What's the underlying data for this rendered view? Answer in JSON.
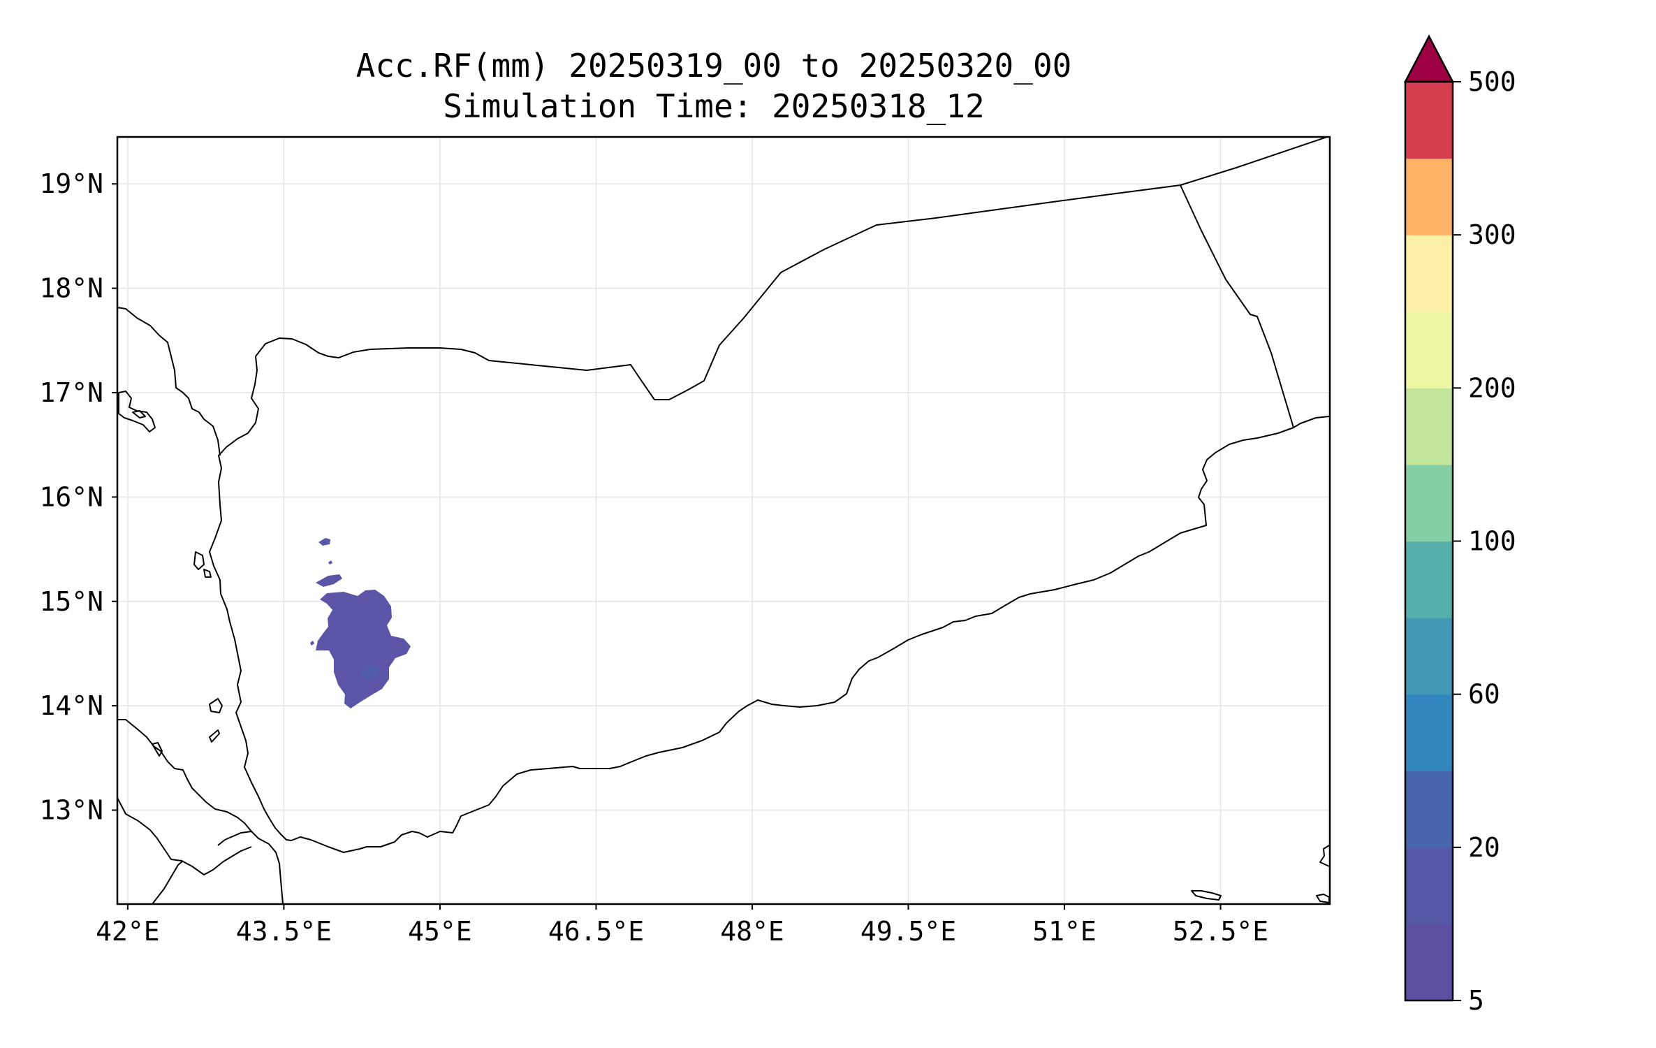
{
  "title_line1": "Acc.RF(mm) 20250319_00 to 20250320_00",
  "title_line2": "Simulation Time: 20250318_12",
  "map": {
    "lon_range": [
      41.9,
      53.55
    ],
    "lat_range": [
      12.1,
      19.45
    ],
    "x_ticks": [
      {
        "value": 42.0,
        "label": "42°E"
      },
      {
        "value": 43.5,
        "label": "43.5°E"
      },
      {
        "value": 45.0,
        "label": "45°E"
      },
      {
        "value": 46.5,
        "label": "46.5°E"
      },
      {
        "value": 48.0,
        "label": "48°E"
      },
      {
        "value": 49.5,
        "label": "49.5°E"
      },
      {
        "value": 51.0,
        "label": "51°E"
      },
      {
        "value": 52.5,
        "label": "52.5°E"
      }
    ],
    "y_ticks": [
      {
        "value": 13.0,
        "label": "13°N"
      },
      {
        "value": 14.0,
        "label": "14°N"
      },
      {
        "value": 15.0,
        "label": "15°N"
      },
      {
        "value": 16.0,
        "label": "16°N"
      },
      {
        "value": 17.0,
        "label": "17°N"
      },
      {
        "value": 18.0,
        "label": "18°N"
      },
      {
        "value": 19.0,
        "label": "19°N"
      }
    ],
    "grid": true
  },
  "colorbar": {
    "levels": [
      5,
      10,
      20,
      40,
      60,
      80,
      100,
      150,
      200,
      250,
      300,
      400,
      500
    ],
    "colors": [
      "#5e4fa2",
      "#5657a6",
      "#4866ae",
      "#3288bd",
      "#4298b5",
      "#55aeaa",
      "#86cfa5",
      "#c4e59c",
      "#eef7a4",
      "#fff0a8",
      "#fdb366",
      "#d53e4f"
    ],
    "extend_color": "#9e0142",
    "tick_labels": [
      {
        "level": 5,
        "label": "5"
      },
      {
        "level": 20,
        "label": "20"
      },
      {
        "level": 60,
        "label": "60"
      },
      {
        "level": 100,
        "label": "100"
      },
      {
        "level": 200,
        "label": "200"
      },
      {
        "level": 300,
        "label": "300"
      },
      {
        "level": 500,
        "label": "500"
      }
    ]
  },
  "rainfall_color": "#5a55a6",
  "rainfall_core_color": "#4e62ab"
}
